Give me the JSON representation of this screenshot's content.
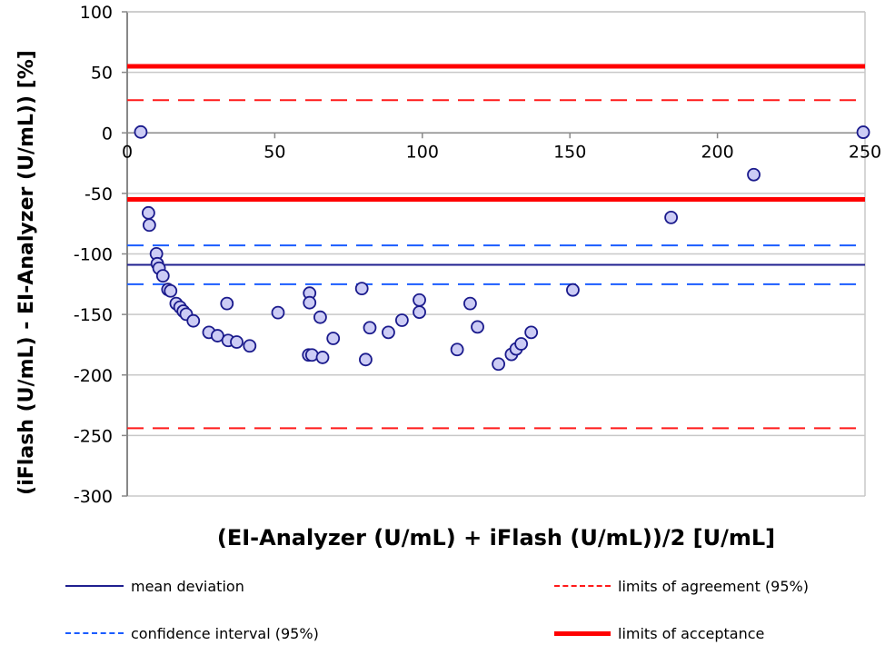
{
  "chart_data": {
    "type": "scatter",
    "subtype": "bland-altman",
    "title": "",
    "xlabel": "(EI-Analyzer (U/mL) + iFlash (U/mL))/2 [U/mL]",
    "ylabel": "(iFlash (U/mL) - EI-Analyzer (U/mL)) [%]",
    "xlim": [
      0,
      250
    ],
    "ylim": [
      -300,
      100
    ],
    "xticks": [
      0,
      50,
      100,
      150,
      200,
      250
    ],
    "yticks": [
      100,
      50,
      0,
      -50,
      -100,
      -150,
      -200,
      -250,
      -300
    ],
    "grid": {
      "horizontal": true,
      "vertical": false
    },
    "legend_position": "bottom",
    "points": {
      "x": [
        4.6,
        7.2,
        7.5,
        9.9,
        10.2,
        10.8,
        12.1,
        13.8,
        14.7,
        16.6,
        17.9,
        19.0,
        20.0,
        22.4,
        27.7,
        30.6,
        33.8,
        34.2,
        37.1,
        41.5,
        51.1,
        61.8,
        61.8,
        61.5,
        62.6,
        65.4,
        66.2,
        69.8,
        79.5,
        80.8,
        82.2,
        88.5,
        93.1,
        99.0,
        99.0,
        111.8,
        116.2,
        118.7,
        125.8,
        130.2,
        131.8,
        133.5,
        136.9,
        151.0,
        184.3,
        212.3,
        249.4
      ],
      "y": [
        0.7,
        -66.1,
        -76.2,
        -99.9,
        -108.1,
        -111.8,
        -118.1,
        -129.4,
        -130.6,
        -141.0,
        -144.0,
        -147.3,
        -149.8,
        -155.3,
        -164.8,
        -167.6,
        -141.0,
        -171.5,
        -172.8,
        -176.0,
        -148.5,
        -132.4,
        -140.3,
        -183.5,
        -183.5,
        -152.3,
        -185.5,
        -169.8,
        -128.6,
        -187.3,
        -161.0,
        -164.8,
        -154.8,
        -138.1,
        -148.1,
        -179.0,
        -141.0,
        -160.3,
        -191.0,
        -183.0,
        -178.5,
        -174.3,
        -164.8,
        -129.8,
        -69.9,
        -34.5,
        0.5
      ],
      "marker_fill": "#ccccf5",
      "marker_edge": "#1a1a8c"
    },
    "series": [
      {
        "name": "mean deviation",
        "style": "solid",
        "color": "#1f1f8f",
        "width": 2,
        "values": [
          -109
        ]
      },
      {
        "name": "limits of agreement (95%)",
        "style": "dashed",
        "color": "#ff1a1a",
        "width": 2,
        "values": [
          27,
          -244
        ]
      },
      {
        "name": "confidence interval (95%)",
        "style": "dashed",
        "color": "#1a5cff",
        "width": 2,
        "values": [
          -93,
          -125
        ]
      },
      {
        "name": "limits of acceptance",
        "style": "solid",
        "color": "#ff0000",
        "width": 5,
        "values": [
          55,
          -55
        ]
      }
    ]
  },
  "legend": {
    "items": [
      {
        "label": "mean deviation"
      },
      {
        "label": "limits of agreement (95%)"
      },
      {
        "label": "confidence interval (95%)"
      },
      {
        "label": "limits of acceptance"
      }
    ]
  }
}
